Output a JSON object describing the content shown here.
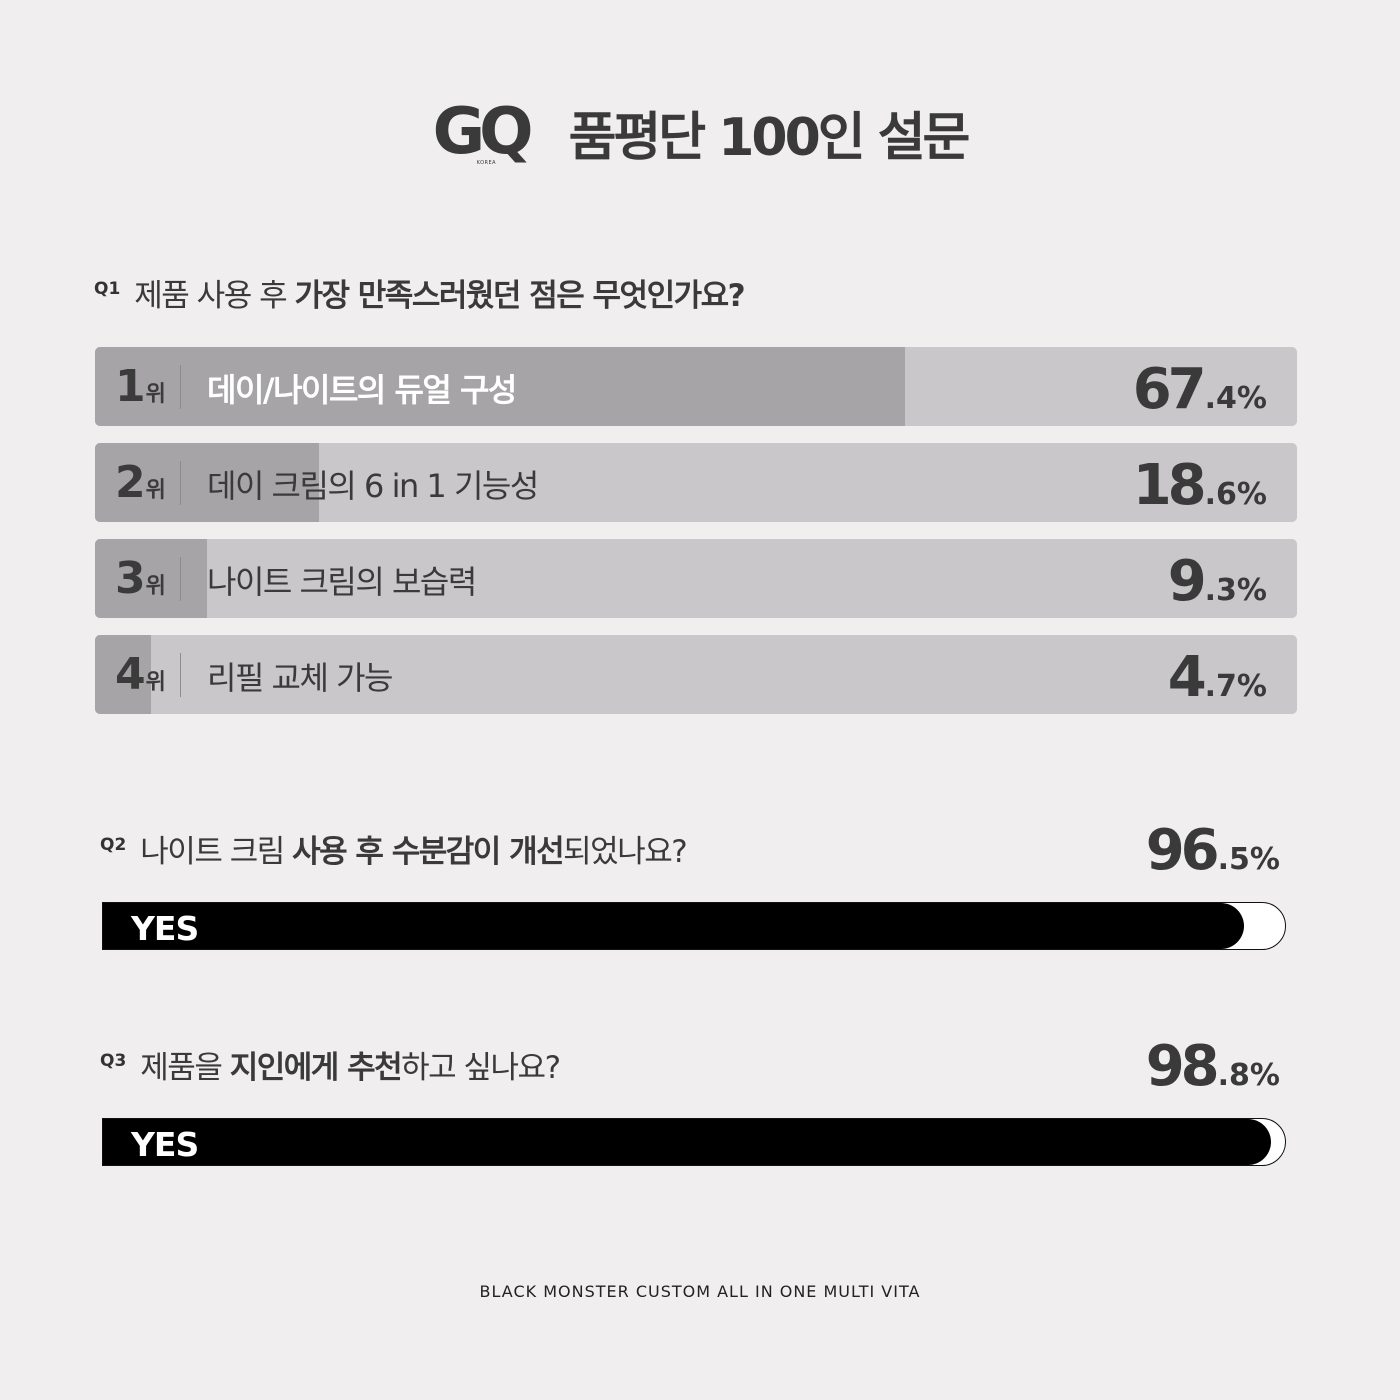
{
  "header": {
    "logo": "GQ",
    "logo_sub": "KOREA",
    "title": "품평단 100인 설문"
  },
  "q1": {
    "num": "Q1",
    "text_plain": "제품 사용 후 ",
    "text_bold": "가장 만족스러웠던 점은 무엇인가요?"
  },
  "q2": {
    "num": "Q2",
    "text_a": "나이트 크림 ",
    "text_b": "사용 후 수분감이 개선",
    "text_c": "되었나요?",
    "yes": "YES",
    "pct_int": "96",
    "pct_dec": ".5%"
  },
  "q3": {
    "num": "Q3",
    "text_a": "제품을 ",
    "text_b": "지인에게 추천",
    "text_c": "하고 싶나요?",
    "yes": "YES",
    "pct_int": "98",
    "pct_dec": ".8%"
  },
  "footer": "BLACK MONSTER CUSTOM ALL IN ONE MULTI VITA",
  "colors": {
    "background": "#f0eeef",
    "bar_track": "#c9c7ca",
    "bar_fill": "#a6a4a7",
    "yes_fill": "#000000"
  },
  "chart_data": [
    {
      "type": "bar",
      "orientation": "horizontal",
      "categories": [
        "데이/나이트의 듀얼 구성",
        "데이 크림의 6 in 1 기능성",
        "나이트 크림의 보습력",
        "리필 교체 가능"
      ],
      "ranks": [
        "1",
        "2",
        "3",
        "4"
      ],
      "rank_suffix": "위",
      "values": [
        67.4,
        18.6,
        9.3,
        4.7
      ],
      "value_labels": [
        {
          "int": "67",
          "dec": ".4%"
        },
        {
          "int": "18",
          "dec": ".6%"
        },
        {
          "int": "9",
          "dec": ".3%"
        },
        {
          "int": "4",
          "dec": ".7%"
        }
      ],
      "xlim": [
        0,
        100
      ],
      "unit": "%"
    },
    {
      "type": "bar",
      "orientation": "horizontal",
      "categories": [
        "YES"
      ],
      "values": [
        96.5
      ],
      "xlim": [
        0,
        100
      ],
      "unit": "%"
    },
    {
      "type": "bar",
      "orientation": "horizontal",
      "categories": [
        "YES"
      ],
      "values": [
        98.8
      ],
      "xlim": [
        0,
        100
      ],
      "unit": "%"
    }
  ]
}
